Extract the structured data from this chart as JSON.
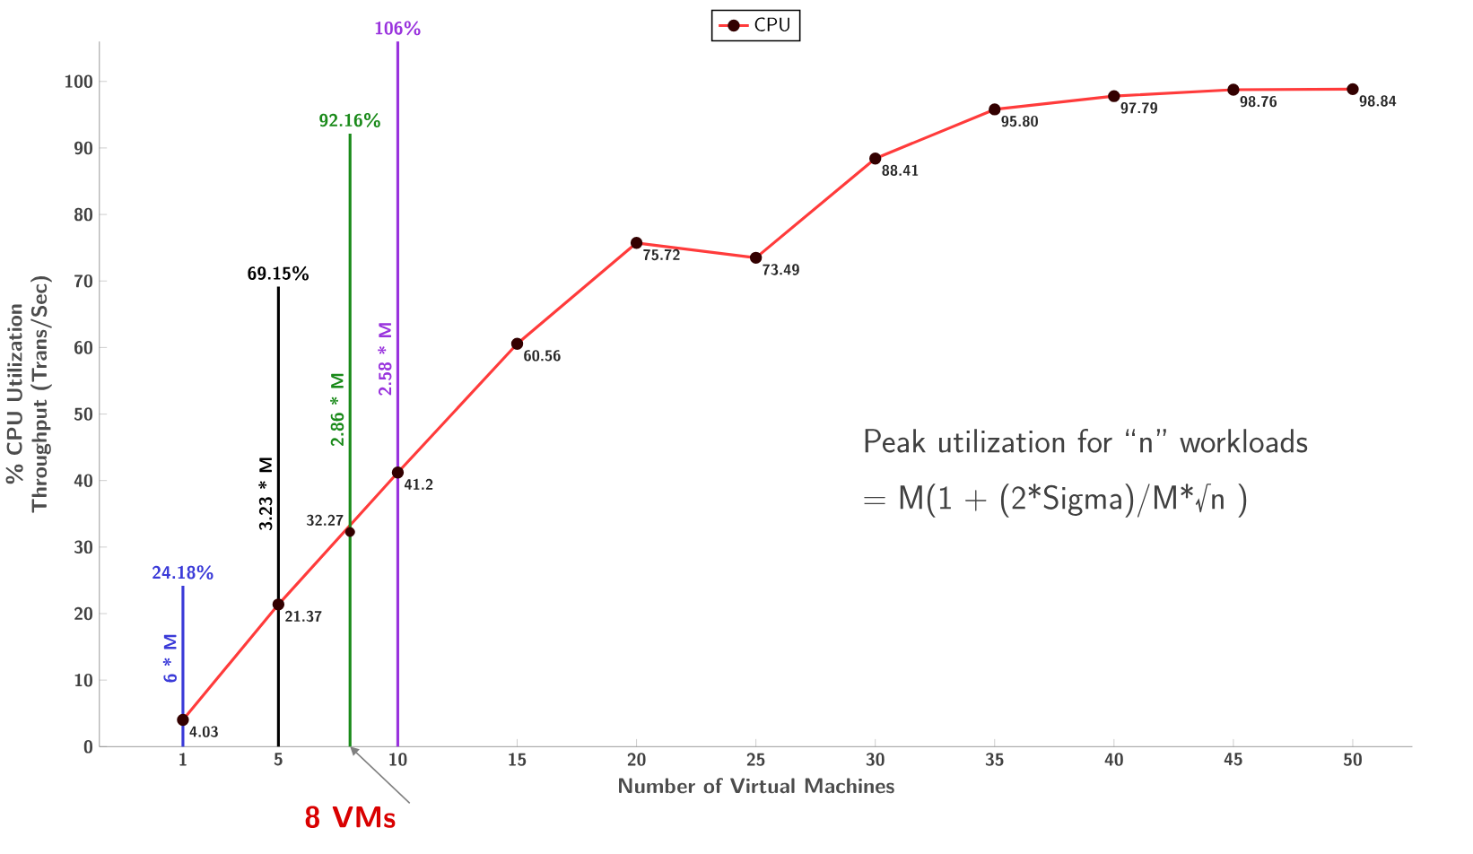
{
  "chart_data": {
    "type": "line",
    "xlabel": "Number of Virtual Machines",
    "ylabel": "% CPU Utilization Throughput (Trans/Sec)",
    "x": [
      1,
      5,
      10,
      15,
      20,
      25,
      30,
      35,
      40,
      45,
      50
    ],
    "xlim": [
      -2.5,
      52.5
    ],
    "xticks": [
      1,
      5,
      10,
      15,
      20,
      25,
      30,
      35,
      40,
      45,
      50
    ],
    "ylim": [
      0,
      106
    ],
    "yticks": [
      0,
      10,
      20,
      30,
      40,
      50,
      60,
      70,
      80,
      90,
      100
    ],
    "legend": "top",
    "marker": "circle",
    "series": [
      {
        "name": "CPU",
        "color": "#ff3b3b",
        "values": [
          4.03,
          21.37,
          41.2,
          60.56,
          75.72,
          73.49,
          88.41,
          95.8,
          97.79,
          98.76,
          98.84
        ],
        "value_labels": [
          "4.03",
          "21.37",
          "41.2",
          "60.56",
          "75.72",
          "73.49",
          "88.41",
          "95.80",
          "97.79",
          "98.76",
          "98.84"
        ]
      },
      {
        "type": "scatter",
        "color": "#330000",
        "x": [
          8
        ],
        "values": [
          32.27
        ],
        "value_labels": [
          "32.27"
        ]
      },
      {
        "type": "line",
        "marker": "none",
        "name": "6 * M",
        "color": "#3a3ad8",
        "x": [
          1,
          1
        ],
        "values": [
          0,
          24.18
        ],
        "value_labels": [
          null,
          "24.18%"
        ]
      },
      {
        "type": "line",
        "marker": "none",
        "name": "3.23 * M",
        "color": "#000000",
        "x": [
          5,
          5
        ],
        "values": [
          0,
          69.15
        ],
        "value_labels": [
          null,
          "69.15%"
        ]
      },
      {
        "type": "line",
        "marker": "none",
        "name": "2.86 * M",
        "color": "#1a8a1a",
        "x": [
          8,
          8
        ],
        "values": [
          0,
          92.16
        ],
        "value_labels": [
          null,
          "92.16%"
        ]
      },
      {
        "type": "line",
        "marker": "none",
        "name": "2.58 * M",
        "color": "#9933dd",
        "x": [
          10,
          10
        ],
        "values": [
          0,
          106
        ],
        "value_labels": [
          null,
          "106%"
        ]
      }
    ],
    "annotations": [
      {
        "text": "8 VMs",
        "x": 8,
        "y": 0
      },
      "Peak utilization for “n” workloads",
      "= M(1 + (2*Sigma)/M*√n )"
    ]
  }
}
